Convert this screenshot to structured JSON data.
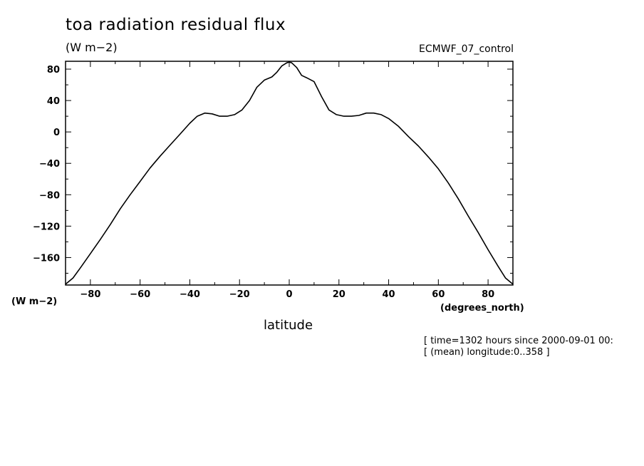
{
  "chart_data": {
    "type": "line",
    "title": "toa radiation residual flux",
    "units_label": "(W m−2)",
    "dataset_label": "ECMWF_07_control",
    "yaxis_units_label": "(W m−2)",
    "xunits_label": "(degrees_north)",
    "xlabel": "latitude",
    "info_lines": [
      "[ time=1302 hours since 2000-09-01 00:",
      "[ (mean) longitude:0..358 ]"
    ],
    "xlim": [
      -90,
      90
    ],
    "ylim": [
      -195,
      90
    ],
    "x_ticks": [
      -80,
      -60,
      -40,
      -20,
      0,
      20,
      40,
      60,
      80
    ],
    "y_ticks": [
      80,
      40,
      0,
      -40,
      -80,
      -120,
      -160
    ],
    "series": [
      {
        "name": "toa radiation residual flux",
        "x": [
          -90,
          -87,
          -84,
          -80,
          -76,
          -72,
          -68,
          -64,
          -60,
          -56,
          -52,
          -48,
          -44,
          -40,
          -37,
          -34,
          -31,
          -28,
          -25,
          -22,
          -19,
          -16,
          -13,
          -10,
          -7,
          -5,
          -3,
          -1,
          0,
          1,
          3,
          5,
          7,
          10,
          13,
          16,
          19,
          22,
          25,
          28,
          31,
          34,
          37,
          40,
          44,
          48,
          52,
          56,
          60,
          64,
          68,
          72,
          76,
          80,
          84,
          87,
          90
        ],
        "y": [
          -194,
          -186,
          -173,
          -155,
          -137,
          -118,
          -98,
          -80,
          -63,
          -46,
          -31,
          -17,
          -3,
          11,
          20,
          24,
          23,
          20,
          20,
          22,
          28,
          40,
          57,
          66,
          70,
          76,
          84,
          88,
          89,
          88,
          82,
          72,
          69,
          64,
          45,
          28,
          22,
          20,
          20,
          21,
          24,
          24,
          22,
          17,
          7,
          -6,
          -18,
          -32,
          -47,
          -65,
          -85,
          -107,
          -128,
          -150,
          -171,
          -186,
          -194
        ]
      }
    ]
  }
}
